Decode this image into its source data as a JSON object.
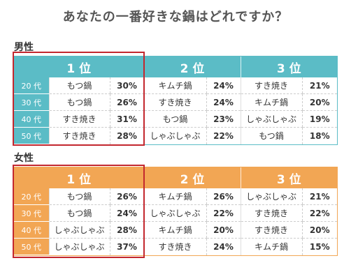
{
  "title": "あなたの一番好きな鍋はどれですか？",
  "colors": {
    "male": "#5bbcc6",
    "female": "#f2a654",
    "highlight": "#c3272e"
  },
  "chart_data": {
    "type": "table",
    "title": "あなたの一番好きな鍋はどれですか？",
    "rank_headers": [
      "1 位",
      "2 位",
      "3 位"
    ],
    "groups": [
      {
        "label": "男性",
        "rows": [
          {
            "age": "20 代",
            "ranks": [
              {
                "item": "もつ鍋",
                "pct": "30%"
              },
              {
                "item": "キムチ鍋",
                "pct": "24%"
              },
              {
                "item": "すき焼き",
                "pct": "21%"
              }
            ]
          },
          {
            "age": "30 代",
            "ranks": [
              {
                "item": "もつ鍋",
                "pct": "26%"
              },
              {
                "item": "すき焼き",
                "pct": "24%"
              },
              {
                "item": "キムチ鍋",
                "pct": "20%"
              }
            ]
          },
          {
            "age": "40 代",
            "ranks": [
              {
                "item": "すき焼き",
                "pct": "31%"
              },
              {
                "item": "もつ鍋",
                "pct": "23%"
              },
              {
                "item": "しゃぶしゃぶ",
                "pct": "19%"
              }
            ]
          },
          {
            "age": "50 代",
            "ranks": [
              {
                "item": "すき焼き",
                "pct": "28%"
              },
              {
                "item": "しゃぶしゃぶ",
                "pct": "22%"
              },
              {
                "item": "もつ鍋",
                "pct": "18%"
              }
            ]
          }
        ]
      },
      {
        "label": "女性",
        "rows": [
          {
            "age": "20 代",
            "ranks": [
              {
                "item": "もつ鍋",
                "pct": "26%"
              },
              {
                "item": "キムチ鍋",
                "pct": "26%"
              },
              {
                "item": "しゃぶしゃぶ",
                "pct": "21%"
              }
            ]
          },
          {
            "age": "30 代",
            "ranks": [
              {
                "item": "もつ鍋",
                "pct": "24%"
              },
              {
                "item": "しゃぶしゃぶ",
                "pct": "22%"
              },
              {
                "item": "すき焼き",
                "pct": "22%"
              }
            ]
          },
          {
            "age": "40 代",
            "ranks": [
              {
                "item": "しゃぶしゃぶ",
                "pct": "28%"
              },
              {
                "item": "キムチ鍋",
                "pct": "20%"
              },
              {
                "item": "すき焼き",
                "pct": "20%"
              }
            ]
          },
          {
            "age": "50 代",
            "ranks": [
              {
                "item": "しゃぶしゃぶ",
                "pct": "37%"
              },
              {
                "item": "すき焼き",
                "pct": "24%"
              },
              {
                "item": "キムチ鍋",
                "pct": "15%"
              }
            ]
          }
        ]
      }
    ]
  }
}
